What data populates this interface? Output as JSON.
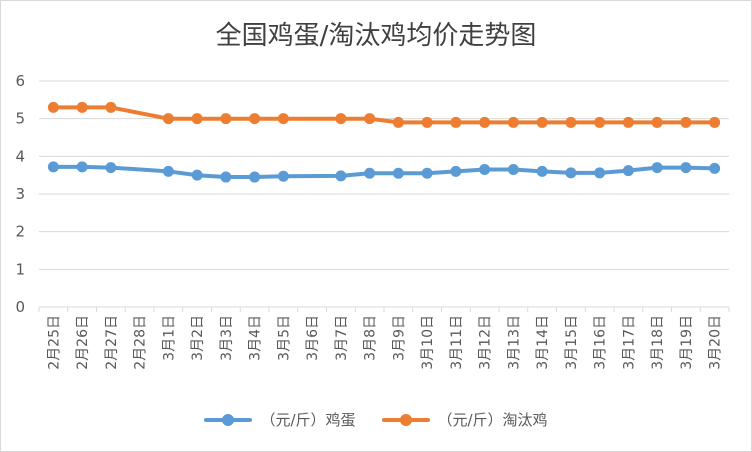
{
  "chart_data": {
    "type": "line",
    "title": "全国鸡蛋/淘汰鸡均价走势图",
    "xlabel": "",
    "ylabel": "",
    "ylim": [
      0,
      6
    ],
    "yticks": [
      0,
      1,
      2,
      3,
      4,
      5,
      6
    ],
    "grid": true,
    "legend_position": "bottom",
    "categories": [
      "2月25日",
      "2月26日",
      "2月27日",
      "2月28日",
      "3月1日",
      "3月2日",
      "3月3日",
      "3月4日",
      "3月5日",
      "3月6日",
      "3月7日",
      "3月8日",
      "3月9日",
      "3月10日",
      "3月11日",
      "3月12日",
      "3月13日",
      "3月14日",
      "3月15日",
      "3月16日",
      "3月17日",
      "3月18日",
      "3月19日",
      "3月20日"
    ],
    "series": [
      {
        "name": "（元/斤）鸡蛋",
        "color": "#5b9bd5",
        "values": [
          3.72,
          3.72,
          3.7,
          null,
          3.6,
          3.5,
          3.45,
          3.45,
          3.47,
          null,
          3.48,
          3.55,
          3.55,
          3.55,
          3.6,
          3.65,
          3.65,
          3.6,
          3.56,
          3.56,
          3.62,
          3.7,
          3.7,
          3.68
        ]
      },
      {
        "name": "（元/斤）淘汰鸡",
        "color": "#ed7d31",
        "values": [
          5.3,
          5.3,
          5.3,
          null,
          5.0,
          5.0,
          5.0,
          5.0,
          5.0,
          null,
          5.0,
          5.0,
          4.9,
          4.9,
          4.9,
          4.9,
          4.9,
          4.9,
          4.9,
          4.9,
          4.9,
          4.9,
          4.9,
          4.9
        ]
      }
    ]
  }
}
